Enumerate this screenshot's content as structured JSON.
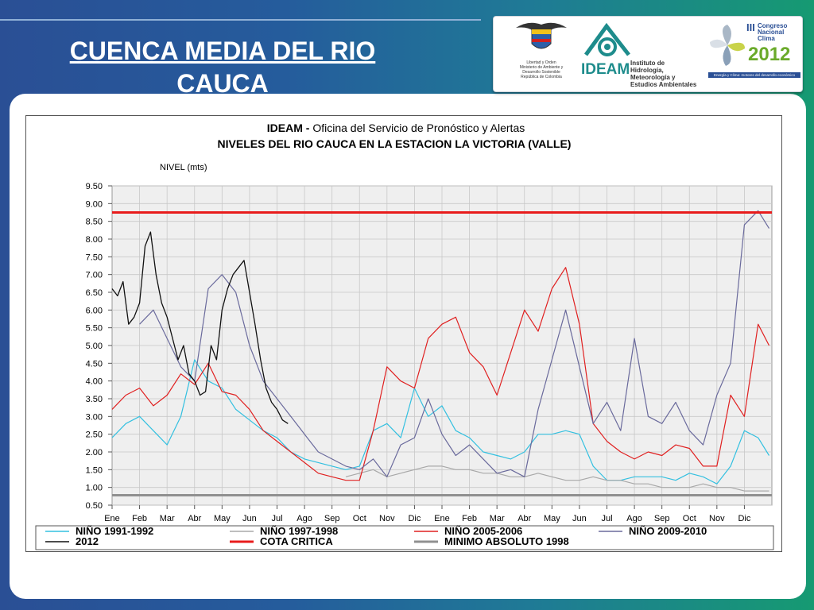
{
  "slide": {
    "title_line1": "CUENCA  MEDIA DEL RIO",
    "title_line2": "CAUCA"
  },
  "logos": {
    "ministry_text": [
      "Libertad y Orden",
      "Ministerio de Ambiente y",
      "Desarrollo Sostenible",
      "República de Colombia"
    ],
    "ideam_word": "IDEAM",
    "ideam_institute": [
      "Instituto de Hidrología,",
      "Meteorología y",
      "Estudios Ambientales"
    ],
    "congreso_roman": "III",
    "congreso_lines": [
      "Congreso",
      "Nacional",
      "Clima"
    ],
    "congreso_year": "2012",
    "congreso_tagline": "Energía y Clima: motores del desarrollo económico"
  },
  "colors": {
    "nino_1991": "#33c0e0",
    "nino_1997": "#a8a8a8",
    "nino_2005": "#e02020",
    "nino_2009": "#6a6a9c",
    "y2012": "#111111",
    "cota": "#e81c1c",
    "minimo": "#909090",
    "green_2012": "#2e8b57"
  },
  "chart_data": {
    "type": "line",
    "org": "IDEAM - ",
    "title": "Oficina del Servicio de Pronóstico y Alertas",
    "subtitle": "NIVELES DEL RIO CAUCA EN LA ESTACION LA VICTORIA (VALLE)",
    "ylabel": "NIVEL (mts)",
    "ylim": [
      0.5,
      9.5
    ],
    "yticks": [
      "0.50",
      "1.00",
      "1.50",
      "2.00",
      "2.50",
      "3.00",
      "3.50",
      "4.00",
      "4.50",
      "5.00",
      "5.50",
      "6.00",
      "6.50",
      "7.00",
      "7.50",
      "8.00",
      "8.50",
      "9.00",
      "9.50"
    ],
    "xlim": [
      0,
      24
    ],
    "xticks": [
      "Ene",
      "Feb",
      "Mar",
      "Abr",
      "May",
      "Jun",
      "Jul",
      "Ago",
      "Sep",
      "Oct",
      "Nov",
      "Dic",
      "Ene",
      "Feb",
      "Mar",
      "Abr",
      "May",
      "Jun",
      "Jul",
      "Ago",
      "Sep",
      "Oct",
      "Nov",
      "Dic"
    ],
    "grid": true,
    "legend_position": "bottom",
    "series": [
      {
        "name": "NIÑO 1991-1992",
        "key": "nino_1991",
        "x": [
          0,
          0.5,
          1,
          1.5,
          2,
          2.5,
          3,
          3.5,
          4,
          4.5,
          5,
          5.5,
          6,
          6.5,
          7,
          7.5,
          8,
          8.5,
          9,
          9.5,
          10,
          10.5,
          11,
          11.5,
          12,
          12.5,
          13,
          13.5,
          14,
          14.5,
          15,
          15.5,
          16,
          16.5,
          17,
          17.5,
          18,
          18.5,
          19,
          19.5,
          20,
          20.5,
          21,
          21.5,
          22,
          22.5,
          23,
          23.5,
          23.9
        ],
        "y": [
          2.4,
          2.8,
          3.0,
          2.6,
          2.2,
          3.0,
          4.6,
          4.0,
          3.8,
          3.2,
          2.9,
          2.6,
          2.4,
          2.0,
          1.8,
          1.7,
          1.6,
          1.5,
          1.6,
          2.6,
          2.8,
          2.4,
          3.8,
          3.0,
          3.3,
          2.6,
          2.4,
          2.0,
          1.9,
          1.8,
          2.0,
          2.5,
          2.5,
          2.6,
          2.5,
          1.6,
          1.2,
          1.2,
          1.3,
          1.3,
          1.3,
          1.2,
          1.4,
          1.3,
          1.1,
          1.6,
          2.6,
          2.4,
          1.9
        ]
      },
      {
        "name": "NIÑO 1997-1998",
        "key": "nino_1997",
        "x": [
          8.5,
          9,
          9.5,
          10,
          10.5,
          11,
          11.5,
          12,
          12.5,
          13,
          13.5,
          14,
          14.5,
          15,
          15.5,
          16,
          16.5,
          17,
          17.5,
          18,
          18.5,
          19,
          19.5,
          20,
          20.5,
          21,
          21.5,
          22,
          22.5,
          23,
          23.5,
          23.9
        ],
        "y": [
          1.3,
          1.4,
          1.5,
          1.3,
          1.4,
          1.5,
          1.6,
          1.6,
          1.5,
          1.5,
          1.4,
          1.4,
          1.3,
          1.3,
          1.4,
          1.3,
          1.2,
          1.2,
          1.3,
          1.2,
          1.2,
          1.1,
          1.1,
          1.0,
          1.0,
          1.0,
          1.1,
          1.0,
          1.0,
          0.9,
          0.9,
          0.9
        ]
      },
      {
        "name": "NIÑO 2005-2006",
        "key": "nino_2005",
        "x": [
          0,
          0.5,
          1,
          1.5,
          2,
          2.5,
          3,
          3.5,
          4,
          4.5,
          5,
          5.5,
          6,
          6.5,
          7,
          7.5,
          8,
          8.5,
          9,
          9.5,
          10,
          10.5,
          11,
          11.5,
          12,
          12.5,
          13,
          13.5,
          14,
          14.5,
          15,
          15.5,
          16,
          16.5,
          17,
          17.5,
          18,
          18.5,
          19,
          19.5,
          20,
          20.5,
          21,
          21.5,
          22,
          22.5,
          23,
          23.5,
          23.9
        ],
        "y": [
          3.2,
          3.6,
          3.8,
          3.3,
          3.6,
          4.2,
          3.9,
          4.5,
          3.7,
          3.6,
          3.2,
          2.6,
          2.3,
          2.0,
          1.7,
          1.4,
          1.3,
          1.2,
          1.2,
          2.6,
          4.4,
          4.0,
          3.8,
          5.2,
          5.6,
          5.8,
          4.8,
          4.4,
          3.6,
          4.8,
          6.0,
          5.4,
          6.6,
          7.2,
          5.6,
          2.8,
          2.3,
          2.0,
          1.8,
          2.0,
          1.9,
          2.2,
          2.1,
          1.6,
          1.6,
          3.6,
          3.0,
          5.6,
          5.0
        ]
      },
      {
        "name": "NIÑO 2009-2010",
        "key": "nino_2009",
        "x": [
          1,
          1.5,
          2,
          2.5,
          3,
          3.5,
          4,
          4.5,
          5,
          5.5,
          6,
          6.5,
          7,
          7.5,
          8,
          8.5,
          9,
          9.5,
          10,
          10.5,
          11,
          11.5,
          12,
          12.5,
          13,
          13.5,
          14,
          14.5,
          15,
          15.5,
          16,
          16.5,
          17,
          17.5,
          18,
          18.5,
          19,
          19.5,
          20,
          20.5,
          21,
          21.5,
          22,
          22.5,
          23,
          23.5,
          23.9
        ],
        "y": [
          5.6,
          6.0,
          5.2,
          4.4,
          4.0,
          6.6,
          7.0,
          6.5,
          5.0,
          4.0,
          3.5,
          3.0,
          2.5,
          2.0,
          1.8,
          1.6,
          1.5,
          1.8,
          1.3,
          2.2,
          2.4,
          3.5,
          2.5,
          1.9,
          2.2,
          1.8,
          1.4,
          1.5,
          1.3,
          3.2,
          4.6,
          6.0,
          4.4,
          2.8,
          3.4,
          2.6,
          5.2,
          3.0,
          2.8,
          3.4,
          2.6,
          2.2,
          3.6,
          4.5,
          8.4,
          8.8,
          8.3
        ]
      },
      {
        "name": "2012",
        "key": "y2012",
        "x": [
          0,
          0.2,
          0.4,
          0.6,
          0.8,
          1,
          1.2,
          1.4,
          1.6,
          1.8,
          2,
          2.2,
          2.4,
          2.6,
          2.8,
          3,
          3.2,
          3.4,
          3.6,
          3.8,
          4,
          4.2,
          4.4,
          4.6,
          4.8,
          5,
          5.2,
          5.4,
          5.6,
          5.8,
          6,
          6.2,
          6.4
        ],
        "y": [
          6.6,
          6.4,
          6.8,
          5.6,
          5.8,
          6.2,
          7.8,
          8.2,
          7.0,
          6.2,
          5.8,
          5.2,
          4.6,
          5.0,
          4.2,
          4.0,
          3.6,
          3.7,
          5.0,
          4.6,
          6.0,
          6.6,
          7.0,
          7.2,
          7.4,
          6.5,
          5.6,
          4.6,
          3.8,
          3.4,
          3.2,
          2.9,
          2.8
        ]
      },
      {
        "name": "COTA CRITICA",
        "key": "cota",
        "x": [
          0,
          24
        ],
        "y": [
          8.75,
          8.75
        ]
      },
      {
        "name": "MINIMO ABSOLUTO 1998",
        "key": "minimo",
        "x": [
          0,
          24
        ],
        "y": [
          0.78,
          0.78
        ]
      }
    ]
  }
}
